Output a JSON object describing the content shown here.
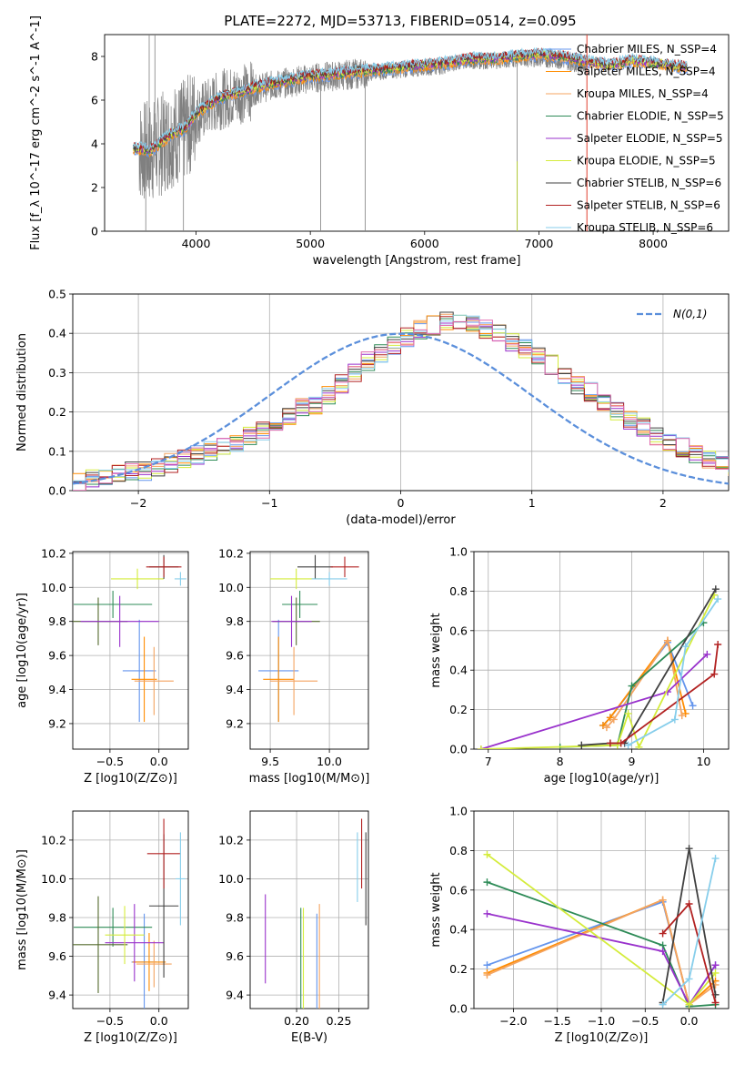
{
  "figure": {
    "title": "PLATE=2272, MJD=53713, FIBERID=0514, z=0.095"
  },
  "chart_data": [
    {
      "id": "spectrum",
      "type": "line",
      "xlabel": "wavelength [Angstrom, rest frame]",
      "ylabel": "Flux [f_λ 10^-17 erg cm^-2 s^-1 A^-1]",
      "xlim": [
        3200,
        8660
      ],
      "ylim": [
        0,
        9
      ],
      "xticks": [
        4000,
        5000,
        6000,
        7000,
        8000
      ],
      "yticks": [
        0,
        2,
        4,
        6,
        8
      ],
      "grid": false,
      "legend_position": "top-right",
      "observed_spectrum": {
        "color": "#808080",
        "wavelength_range": [
          3500,
          7420
        ],
        "x": [
          3500,
          3600,
          3700,
          3800,
          3900,
          4000,
          4200,
          4400,
          4600,
          4800,
          5000,
          5200,
          5400,
          5600,
          5800,
          6000,
          6200,
          6400,
          6600,
          6800,
          7000,
          7200,
          7400
        ],
        "y": [
          3.7,
          3.6,
          4.0,
          4.4,
          4.6,
          5.3,
          6.0,
          6.3,
          6.6,
          6.8,
          7.0,
          7.1,
          7.2,
          7.3,
          7.4,
          7.5,
          7.6,
          7.8,
          7.8,
          7.9,
          7.9,
          7.8,
          7.6
        ]
      },
      "model_spectrum": {
        "wavelength_range": [
          3450,
          8300
        ],
        "x": [
          3450,
          3600,
          3700,
          3800,
          3900,
          4000,
          4200,
          4400,
          4600,
          4800,
          5000,
          5200,
          5400,
          5600,
          5800,
          6000,
          6200,
          6400,
          6600,
          6800,
          7000,
          7200,
          7400,
          7600,
          7800,
          8000,
          8300
        ],
        "y": [
          3.8,
          3.7,
          4.1,
          4.5,
          4.7,
          5.4,
          6.1,
          6.4,
          6.7,
          6.9,
          7.1,
          7.2,
          7.3,
          7.4,
          7.5,
          7.6,
          7.7,
          7.9,
          7.9,
          8.0,
          8.1,
          8.0,
          7.8,
          7.6,
          7.8,
          7.7,
          7.5
        ]
      },
      "series": [
        {
          "name": "Chabrier MILES, N_SSP=4",
          "color": "#6495ed"
        },
        {
          "name": "Salpeter MILES, N_SSP=4",
          "color": "#ff8c00"
        },
        {
          "name": "Kroupa MILES, N_SSP=4",
          "color": "#f4a460"
        },
        {
          "name": "Chabrier ELODIE, N_SSP=5",
          "color": "#2e8b57"
        },
        {
          "name": "Salpeter ELODIE, N_SSP=5",
          "color": "#9932cc"
        },
        {
          "name": "Kroupa ELODIE, N_SSP=5",
          "color": "#d4ec3b"
        },
        {
          "name": "Chabrier STELIB, N_SSP=6",
          "color": "#404040"
        },
        {
          "name": "Salpeter STELIB, N_SSP=6",
          "color": "#b22222"
        },
        {
          "name": "Kroupa STELIB, N_SSP=6",
          "color": "#87ceeb"
        }
      ]
    },
    {
      "id": "residuals",
      "type": "bar",
      "xlabel": "(data-model)/error",
      "ylabel": "Normed distribution",
      "xlim": [
        -2.5,
        2.5
      ],
      "ylim": [
        0,
        0.5
      ],
      "xticks": [
        -2,
        -1,
        0,
        1,
        2
      ],
      "yticks": [
        0.0,
        0.1,
        0.2,
        0.3,
        0.4,
        0.5
      ],
      "grid": true,
      "legend_position": "top-right",
      "reference_curve": {
        "name": "N(0,1)",
        "color": "#5b8fdb",
        "style": "dashed"
      },
      "bin_width": 0.1,
      "bin_start": -2.5,
      "hist_values": [
        0.02,
        0.03,
        0.03,
        0.04,
        0.05,
        0.05,
        0.06,
        0.07,
        0.08,
        0.09,
        0.1,
        0.11,
        0.12,
        0.14,
        0.15,
        0.17,
        0.19,
        0.21,
        0.22,
        0.24,
        0.27,
        0.3,
        0.33,
        0.35,
        0.37,
        0.39,
        0.41,
        0.42,
        0.43,
        0.43,
        0.42,
        0.41,
        0.4,
        0.38,
        0.36,
        0.34,
        0.32,
        0.29,
        0.27,
        0.25,
        0.22,
        0.2,
        0.18,
        0.16,
        0.14,
        0.12,
        0.11,
        0.09,
        0.08,
        0.07,
        0.06
      ]
    },
    {
      "id": "age-vs-Z",
      "type": "scatter",
      "xlabel": "Z [log10(Z/Z⊙)]",
      "ylabel": "age  [log10(age/yr)]",
      "xlim": [
        -0.88,
        0.3
      ],
      "ylim": [
        9.05,
        10.21
      ],
      "xticks": [
        -0.5,
        0.0
      ],
      "yticks": [
        9.2,
        9.4,
        9.6,
        9.8,
        10.0,
        10.2
      ],
      "grid": true,
      "points": [
        {
          "color": "#6495ed",
          "x": -0.2,
          "xerr": 0.17,
          "y": 9.51,
          "yerr": 0.3
        },
        {
          "color": "#ff8c00",
          "x": -0.15,
          "xerr": 0.13,
          "y": 9.46,
          "yerr": 0.25
        },
        {
          "color": "#f4a460",
          "x": -0.05,
          "xerr": 0.2,
          "y": 9.45,
          "yerr": 0.2
        },
        {
          "color": "#2e8b57",
          "x": -0.47,
          "xerr": 0.4,
          "y": 9.9,
          "yerr": 0.08
        },
        {
          "color": "#556b2f",
          "x": -0.62,
          "xerr": 0.3,
          "y": 9.8,
          "yerr": 0.14
        },
        {
          "color": "#9932cc",
          "x": -0.4,
          "xerr": 0.4,
          "y": 9.8,
          "yerr": 0.15
        },
        {
          "color": "#d4ec3b",
          "x": -0.22,
          "xerr": 0.27,
          "y": 10.05,
          "yerr": 0.06
        },
        {
          "color": "#404040",
          "x": 0.05,
          "xerr": 0.15,
          "y": 10.12,
          "yerr": 0.07
        },
        {
          "color": "#b22222",
          "x": 0.05,
          "xerr": 0.18,
          "y": 10.12,
          "yerr": 0.06
        },
        {
          "color": "#87ceeb",
          "x": 0.22,
          "xerr": 0.06,
          "y": 10.05,
          "yerr": 0.04
        }
      ]
    },
    {
      "id": "age-vs-mass",
      "type": "scatter",
      "xlabel": "mass [log10(M/M⊙)]",
      "ylabel": "",
      "xlim": [
        9.33,
        10.33
      ],
      "ylim": [
        9.05,
        10.21
      ],
      "xticks": [
        9.5,
        10.0
      ],
      "yticks": [
        9.2,
        9.4,
        9.6,
        9.8,
        10.0,
        10.2
      ],
      "grid": true,
      "points": [
        {
          "color": "#6495ed",
          "x": 9.57,
          "xerr": 0.17,
          "y": 9.51,
          "yerr": 0.3
        },
        {
          "color": "#ff8c00",
          "x": 9.57,
          "xerr": 0.13,
          "y": 9.46,
          "yerr": 0.25
        },
        {
          "color": "#f4a460",
          "x": 9.7,
          "xerr": 0.2,
          "y": 9.45,
          "yerr": 0.2
        },
        {
          "color": "#2e8b57",
          "x": 9.75,
          "xerr": 0.15,
          "y": 9.9,
          "yerr": 0.08
        },
        {
          "color": "#556b2f",
          "x": 9.72,
          "xerr": 0.2,
          "y": 9.8,
          "yerr": 0.14
        },
        {
          "color": "#9932cc",
          "x": 9.68,
          "xerr": 0.17,
          "y": 9.8,
          "yerr": 0.15
        },
        {
          "color": "#d4ec3b",
          "x": 9.72,
          "xerr": 0.22,
          "y": 10.05,
          "yerr": 0.06
        },
        {
          "color": "#404040",
          "x": 9.88,
          "xerr": 0.15,
          "y": 10.12,
          "yerr": 0.07
        },
        {
          "color": "#b22222",
          "x": 10.13,
          "xerr": 0.12,
          "y": 10.12,
          "yerr": 0.06
        },
        {
          "color": "#87ceeb",
          "x": 10.0,
          "xerr": 0.15,
          "y": 10.05,
          "yerr": 0.04
        }
      ]
    },
    {
      "id": "mass-weight-vs-age",
      "type": "line",
      "xlabel": "age  [log10(age/yr)]",
      "ylabel": "mass weight",
      "xlim": [
        6.8,
        10.35
      ],
      "ylim": [
        0.0,
        1.0
      ],
      "xticks": [
        7,
        8,
        9,
        10
      ],
      "yticks": [
        0.0,
        0.2,
        0.4,
        0.6,
        0.8,
        1.0
      ],
      "grid": true,
      "series": [
        {
          "color": "#6495ed",
          "x": [
            8.6,
            8.7,
            9.5,
            9.85
          ],
          "y": [
            0.12,
            0.16,
            0.54,
            0.22
          ]
        },
        {
          "color": "#ff8c00",
          "x": [
            8.6,
            8.7,
            9.5,
            9.75
          ],
          "y": [
            0.12,
            0.16,
            0.55,
            0.18
          ]
        },
        {
          "color": "#f4a460",
          "x": [
            8.65,
            8.75,
            9.5,
            9.7
          ],
          "y": [
            0.11,
            0.15,
            0.55,
            0.17
          ]
        },
        {
          "color": "#2e8b57",
          "x": [
            8.0,
            8.8,
            9.0,
            10.0
          ],
          "y": [
            0.01,
            0.02,
            0.32,
            0.64
          ]
        },
        {
          "color": "#9932cc",
          "x": [
            6.9,
            9.5,
            10.05
          ],
          "y": [
            0.0,
            0.29,
            0.48
          ]
        },
        {
          "color": "#d4ec3b",
          "x": [
            6.9,
            8.8,
            8.95,
            9.1,
            10.15
          ],
          "y": [
            0.0,
            0.02,
            0.18,
            0.01,
            0.78
          ]
        },
        {
          "color": "#404040",
          "x": [
            8.3,
            8.7,
            8.9,
            10.17
          ],
          "y": [
            0.02,
            0.03,
            0.03,
            0.81
          ]
        },
        {
          "color": "#b22222",
          "x": [
            8.7,
            8.85,
            10.15,
            10.2
          ],
          "y": [
            0.03,
            0.03,
            0.38,
            0.53
          ]
        },
        {
          "color": "#87ceeb",
          "x": [
            8.95,
            9.6,
            9.75,
            10.2
          ],
          "y": [
            0.02,
            0.15,
            0.52,
            0.76
          ]
        }
      ]
    },
    {
      "id": "mass-vs-Z",
      "type": "scatter",
      "xlabel": "Z [log10(Z/Z⊙)]",
      "ylabel": "mass [log10(M/M⊙)]",
      "xlim": [
        -0.88,
        0.3
      ],
      "ylim": [
        9.33,
        10.35
      ],
      "xticks": [
        -0.5,
        0.0
      ],
      "yticks": [
        9.4,
        9.6,
        9.8,
        10.0,
        10.2
      ],
      "grid": true,
      "points": [
        {
          "color": "#6495ed",
          "x": -0.15,
          "xerr": 0.13,
          "y": 9.57,
          "yerr": 0.25
        },
        {
          "color": "#ff8c00",
          "x": -0.1,
          "xerr": 0.17,
          "y": 9.57,
          "yerr": 0.15
        },
        {
          "color": "#f4a460",
          "x": -0.05,
          "xerr": 0.18,
          "y": 9.56,
          "yerr": 0.12
        },
        {
          "color": "#2e8b57",
          "x": -0.47,
          "xerr": 0.4,
          "y": 9.75,
          "yerr": 0.1
        },
        {
          "color": "#556b2f",
          "x": -0.62,
          "xerr": 0.3,
          "y": 9.66,
          "yerr": 0.25
        },
        {
          "color": "#9932cc",
          "x": -0.25,
          "xerr": 0.3,
          "y": 9.67,
          "yerr": 0.2
        },
        {
          "color": "#d4ec3b",
          "x": -0.35,
          "xerr": 0.2,
          "y": 9.71,
          "yerr": 0.15
        },
        {
          "color": "#404040",
          "x": 0.05,
          "xerr": 0.15,
          "y": 9.86,
          "yerr": 0.37
        },
        {
          "color": "#b22222",
          "x": 0.05,
          "xerr": 0.17,
          "y": 10.13,
          "yerr": 0.18
        },
        {
          "color": "#87ceeb",
          "x": 0.22,
          "xerr": 0.05,
          "y": 10.0,
          "yerr": 0.24
        }
      ]
    },
    {
      "id": "mass-vs-EBV",
      "type": "scatter",
      "xlabel": "E(B-V)",
      "ylabel": "",
      "xlim": [
        0.145,
        0.285
      ],
      "ylim": [
        9.33,
        10.35
      ],
      "xticks": [
        0.2,
        0.25
      ],
      "yticks": [
        9.4,
        9.6,
        9.8,
        10.0,
        10.2
      ],
      "grid": true,
      "points": [
        {
          "color": "#9932cc",
          "x": 0.163,
          "y": 9.69,
          "yerr": 0.23
        },
        {
          "color": "#2e8b57",
          "x": 0.205,
          "y": 9.57,
          "yerr": 0.28
        },
        {
          "color": "#d4ec3b",
          "x": 0.208,
          "y": 9.57,
          "yerr": 0.28
        },
        {
          "color": "#6495ed",
          "x": 0.224,
          "y": 9.57,
          "yerr": 0.25
        },
        {
          "color": "#f4a460",
          "x": 0.227,
          "y": 9.57,
          "yerr": 0.3
        },
        {
          "color": "#87ceeb",
          "x": 0.272,
          "y": 10.06,
          "yerr": 0.18
        },
        {
          "color": "#b22222",
          "x": 0.277,
          "y": 10.13,
          "yerr": 0.18
        },
        {
          "color": "#404040",
          "x": 0.282,
          "y": 10.0,
          "yerr": 0.24
        }
      ]
    },
    {
      "id": "mass-weight-vs-Z",
      "type": "line",
      "xlabel": "Z [log10(Z/Z⊙)]",
      "ylabel": "mass weight",
      "xlim": [
        -2.45,
        0.45
      ],
      "ylim": [
        0.0,
        1.0
      ],
      "xticks": [
        -2.0,
        -1.5,
        -1.0,
        -0.5,
        0.0
      ],
      "yticks": [
        0.0,
        0.2,
        0.4,
        0.6,
        0.8,
        1.0
      ],
      "grid": true,
      "series": [
        {
          "color": "#6495ed",
          "x": [
            -2.3,
            -0.3,
            0.0,
            0.3
          ],
          "y": [
            0.22,
            0.54,
            0.02,
            0.22
          ]
        },
        {
          "color": "#ff8c00",
          "x": [
            -2.3,
            -0.3,
            0.0,
            0.3
          ],
          "y": [
            0.18,
            0.55,
            0.02,
            0.14
          ]
        },
        {
          "color": "#f4a460",
          "x": [
            -2.3,
            -0.3,
            0.0,
            0.3
          ],
          "y": [
            0.17,
            0.55,
            0.02,
            0.12
          ]
        },
        {
          "color": "#2e8b57",
          "x": [
            -2.3,
            -0.3,
            0.0,
            0.3
          ],
          "y": [
            0.64,
            0.32,
            0.01,
            0.02
          ]
        },
        {
          "color": "#9932cc",
          "x": [
            -2.3,
            -0.3,
            0.0,
            0.3
          ],
          "y": [
            0.48,
            0.29,
            0.02,
            0.22
          ]
        },
        {
          "color": "#d4ec3b",
          "x": [
            -2.3,
            0.0,
            0.3
          ],
          "y": [
            0.78,
            0.02,
            0.18
          ]
        },
        {
          "color": "#404040",
          "x": [
            -0.3,
            0.0,
            0.3
          ],
          "y": [
            0.03,
            0.81,
            0.07
          ]
        },
        {
          "color": "#b22222",
          "x": [
            -0.3,
            0.0,
            0.3
          ],
          "y": [
            0.38,
            0.53,
            0.03
          ]
        },
        {
          "color": "#87ceeb",
          "x": [
            -0.3,
            0.0,
            0.3
          ],
          "y": [
            0.02,
            0.15,
            0.76
          ]
        }
      ]
    }
  ]
}
